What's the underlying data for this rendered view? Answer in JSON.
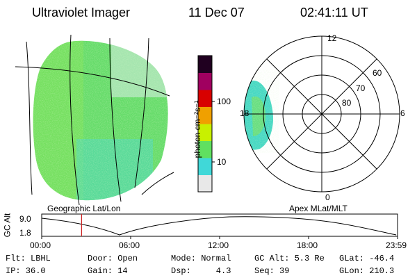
{
  "header": {
    "instrument": "Ultraviolet Imager",
    "date": "11 Dec 07",
    "time": "02:41:11 UT"
  },
  "geo_label": "Geographic Lat/Lon",
  "polar_label": "Apex MLat/MLT",
  "polar": {
    "mlt_labels": {
      "top": "12",
      "left": "18",
      "right": "6",
      "bottom": "0"
    },
    "lat_labels": [
      "60",
      "70",
      "80"
    ]
  },
  "colorbar": {
    "unit_label": "photon cm⁻²s⁻¹",
    "tick_labels": [
      "100",
      "10"
    ],
    "colors": [
      "#e8e8e8",
      "#40d8d8",
      "#60e060",
      "#c8f000",
      "#f0a000",
      "#d80000",
      "#a00060",
      "#200020"
    ]
  },
  "altitude_plot": {
    "ylabel": "GC Alt",
    "ytick_labels": [
      "9.0",
      "1.8"
    ],
    "xtick_labels": [
      "00:00",
      "06:00",
      "12:00",
      "18:00",
      "23:59"
    ],
    "current_time_marker_hours": 2.69
  },
  "info": {
    "row1": {
      "flt": "Flt: LBHL",
      "door": "Door: Open",
      "mode": "Mode: Normal",
      "gcalt": "GC Alt: 5.3 Re",
      "glat": "GLat: -46.4"
    },
    "row2": {
      "ip": "IP: 36.0",
      "gain": "Gain: 14",
      "dsp": "Dsp:     4.3",
      "seq": "Seq: 39",
      "glon": "GLon: 210.3"
    }
  },
  "palette": {
    "aurora": "#5fd86a",
    "aurora_alt": "#3ed6c8",
    "aurora_edge": "#9be840",
    "marker": "#cc2222"
  }
}
